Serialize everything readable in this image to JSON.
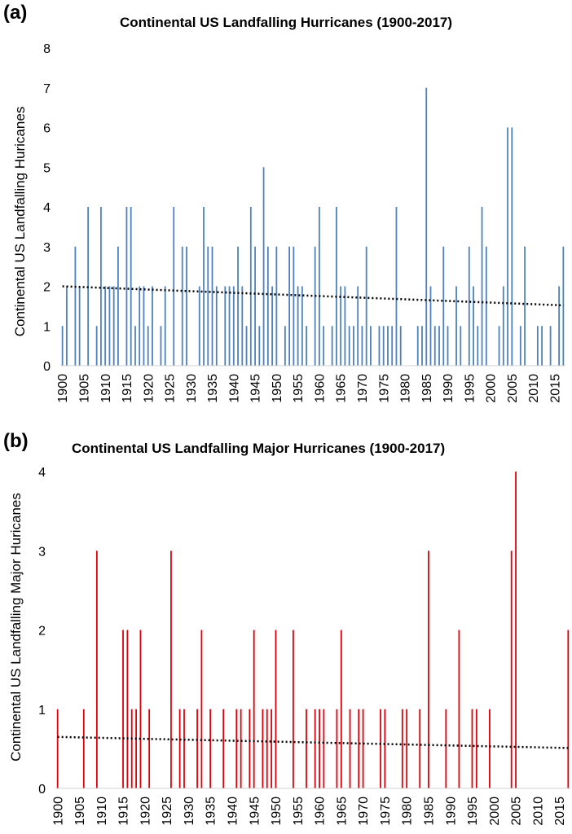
{
  "chart_data": [
    {
      "type": "bar",
      "panel_label": "(a)",
      "title": "Continental US Landfalling Hurricanes (1900-2017)",
      "ylabel": "Continental US Landfalling Huricanes",
      "xlabel": "",
      "color": "#4f81bd",
      "trend_color": "#000000",
      "ylim": [
        0,
        8
      ],
      "yticks": [
        "0",
        "1",
        "2",
        "3",
        "4",
        "5",
        "6",
        "7",
        "8"
      ],
      "x_start": 1900,
      "x_end": 2017,
      "xtick_labels": [
        "1900",
        "1905",
        "1910",
        "1915",
        "1920",
        "1925",
        "1930",
        "1935",
        "1940",
        "1945",
        "1950",
        "1955",
        "1960",
        "1965",
        "1970",
        "1975",
        "1980",
        "1985",
        "1990",
        "1995",
        "2000",
        "2005",
        "2010",
        "2015"
      ],
      "years": [
        1900,
        1901,
        1902,
        1903,
        1904,
        1905,
        1906,
        1907,
        1908,
        1909,
        1910,
        1911,
        1912,
        1913,
        1914,
        1915,
        1916,
        1917,
        1918,
        1919,
        1920,
        1921,
        1922,
        1923,
        1924,
        1925,
        1926,
        1927,
        1928,
        1929,
        1930,
        1931,
        1932,
        1933,
        1934,
        1935,
        1936,
        1937,
        1938,
        1939,
        1940,
        1941,
        1942,
        1943,
        1944,
        1945,
        1946,
        1947,
        1948,
        1949,
        1950,
        1951,
        1952,
        1953,
        1954,
        1955,
        1956,
        1957,
        1958,
        1959,
        1960,
        1961,
        1962,
        1963,
        1964,
        1965,
        1966,
        1967,
        1968,
        1969,
        1970,
        1971,
        1972,
        1973,
        1974,
        1975,
        1976,
        1977,
        1978,
        1979,
        1980,
        1981,
        1982,
        1983,
        1984,
        1985,
        1986,
        1987,
        1988,
        1989,
        1990,
        1991,
        1992,
        1993,
        1994,
        1995,
        1996,
        1997,
        1998,
        1999,
        2000,
        2001,
        2002,
        2003,
        2004,
        2005,
        2006,
        2007,
        2008,
        2009,
        2010,
        2011,
        2012,
        2013,
        2014,
        2015,
        2016,
        2017
      ],
      "values": [
        1,
        2,
        0,
        3,
        2,
        0,
        4,
        0,
        1,
        4,
        2,
        2,
        2,
        3,
        0,
        4,
        4,
        1,
        2,
        2,
        1,
        2,
        0,
        1,
        2,
        0,
        4,
        0,
        3,
        3,
        0,
        0,
        2,
        4,
        3,
        3,
        2,
        0,
        2,
        2,
        2,
        3,
        2,
        1,
        4,
        3,
        1,
        5,
        3,
        2,
        3,
        0,
        1,
        3,
        3,
        2,
        2,
        1,
        0,
        3,
        4,
        1,
        0,
        1,
        4,
        2,
        2,
        1,
        1,
        2,
        1,
        3,
        1,
        0,
        1,
        1,
        1,
        1,
        4,
        1,
        0,
        0,
        0,
        1,
        1,
        7,
        2,
        1,
        1,
        3,
        1,
        0,
        2,
        1,
        0,
        3,
        2,
        1,
        4,
        3,
        0,
        0,
        1,
        2,
        6,
        6,
        0,
        1,
        3,
        0,
        0,
        1,
        1,
        0,
        1,
        0,
        2,
        3
      ],
      "trend": {
        "start": 2.0,
        "end": 1.52
      }
    },
    {
      "type": "bar",
      "panel_label": "(b)",
      "title": "Continental US Landfalling Major Hurricanes (1900-2017)",
      "ylabel": "Continental US Landfalling Major Huricanes",
      "xlabel": "",
      "color": "#e0000a",
      "trend_color": "#000000",
      "ylim": [
        0,
        4
      ],
      "yticks": [
        "0",
        "1",
        "2",
        "3",
        "4"
      ],
      "x_start": 1900,
      "x_end": 2017,
      "xtick_labels": [
        "1900",
        "1905",
        "1910",
        "1915",
        "1920",
        "1925",
        "1930",
        "1935",
        "1940",
        "1945",
        "1950",
        "1955",
        "1960",
        "1965",
        "1970",
        "1975",
        "1980",
        "1985",
        "1990",
        "1995",
        "2000",
        "2005",
        "2010",
        "2015"
      ],
      "years": [
        1900,
        1901,
        1902,
        1903,
        1904,
        1905,
        1906,
        1907,
        1908,
        1909,
        1910,
        1911,
        1912,
        1913,
        1914,
        1915,
        1916,
        1917,
        1918,
        1919,
        1920,
        1921,
        1922,
        1923,
        1924,
        1925,
        1926,
        1927,
        1928,
        1929,
        1930,
        1931,
        1932,
        1933,
        1934,
        1935,
        1936,
        1937,
        1938,
        1939,
        1940,
        1941,
        1942,
        1943,
        1944,
        1945,
        1946,
        1947,
        1948,
        1949,
        1950,
        1951,
        1952,
        1953,
        1954,
        1955,
        1956,
        1957,
        1958,
        1959,
        1960,
        1961,
        1962,
        1963,
        1964,
        1965,
        1966,
        1967,
        1968,
        1969,
        1970,
        1971,
        1972,
        1973,
        1974,
        1975,
        1976,
        1977,
        1978,
        1979,
        1980,
        1981,
        1982,
        1983,
        1984,
        1985,
        1986,
        1987,
        1988,
        1989,
        1990,
        1991,
        1992,
        1993,
        1994,
        1995,
        1996,
        1997,
        1998,
        1999,
        2000,
        2001,
        2002,
        2003,
        2004,
        2005,
        2006,
        2007,
        2008,
        2009,
        2010,
        2011,
        2012,
        2013,
        2014,
        2015,
        2016,
        2017
      ],
      "values": [
        1,
        0,
        0,
        0,
        0,
        0,
        1,
        0,
        0,
        3,
        0,
        0,
        0,
        0,
        0,
        2,
        2,
        1,
        1,
        2,
        0,
        1,
        0,
        0,
        0,
        0,
        3,
        0,
        1,
        1,
        0,
        0,
        1,
        2,
        0,
        1,
        0,
        0,
        1,
        0,
        0,
        1,
        1,
        0,
        1,
        2,
        0,
        1,
        1,
        1,
        2,
        0,
        0,
        0,
        2,
        0,
        0,
        1,
        0,
        1,
        1,
        1,
        0,
        0,
        1,
        2,
        0,
        1,
        0,
        1,
        1,
        0,
        0,
        0,
        1,
        1,
        0,
        0,
        0,
        1,
        1,
        0,
        0,
        1,
        0,
        3,
        0,
        0,
        0,
        1,
        0,
        0,
        2,
        0,
        0,
        1,
        1,
        0,
        0,
        1,
        0,
        0,
        0,
        0,
        3,
        4,
        0,
        0,
        0,
        0,
        0,
        0,
        0,
        0,
        0,
        0,
        0,
        2
      ],
      "trend": {
        "start": 0.65,
        "end": 0.51
      }
    }
  ]
}
